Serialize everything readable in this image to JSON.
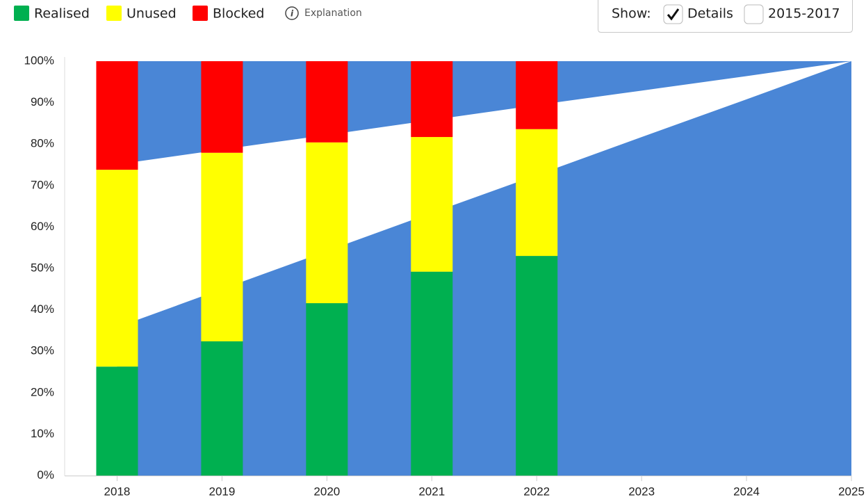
{
  "explanation": "Explanation",
  "controls": {
    "label": "Show:",
    "options": [
      {
        "label": "Details",
        "checked": true
      },
      {
        "label": "2015-2017",
        "checked": false
      }
    ]
  },
  "chart_data": {
    "type": "stacked-bar-area",
    "x": [
      2018,
      2019,
      2020,
      2021,
      2022
    ],
    "series": [
      {
        "name": "Realised",
        "color": "#00b050",
        "values": [
          26.3,
          32.4,
          41.6,
          49.2,
          53.0
        ]
      },
      {
        "name": "Unused",
        "color": "#ffff00",
        "values": [
          47.5,
          45.5,
          38.8,
          32.5,
          30.6
        ]
      },
      {
        "name": "Blocked",
        "color": "#ff0000",
        "values": [
          26.2,
          22.1,
          19.6,
          18.3,
          16.4
        ]
      }
    ],
    "areas": {
      "x": [
        2018,
        2019,
        2020,
        2021,
        2022,
        2023,
        2024,
        2025
      ],
      "color": "#4a86d6",
      "lower": [
        35.8,
        45.0,
        54.2,
        63.4,
        72.5,
        81.7,
        90.8,
        100
      ],
      "upper": [
        75.1,
        78.7,
        82.2,
        85.8,
        89.4,
        92.9,
        96.4,
        100
      ]
    },
    "xlim": [
      2017.5,
      2025
    ],
    "xticks": [
      2018,
      2019,
      2020,
      2021,
      2022,
      2023,
      2024,
      2025
    ],
    "ylim": [
      0,
      100
    ],
    "yticks": [
      {
        "value": 0,
        "label": "0%"
      },
      {
        "value": 10,
        "label": "10%"
      },
      {
        "value": 20,
        "label": "20%"
      },
      {
        "value": 30,
        "label": "30%"
      },
      {
        "value": 40,
        "label": "40%"
      },
      {
        "value": 50,
        "label": "50%"
      },
      {
        "value": 60,
        "label": "60%"
      },
      {
        "value": 70,
        "label": "70%"
      },
      {
        "value": 80,
        "label": "80%"
      },
      {
        "value": 90,
        "label": "90%"
      },
      {
        "value": 100,
        "label": "100%"
      }
    ]
  }
}
